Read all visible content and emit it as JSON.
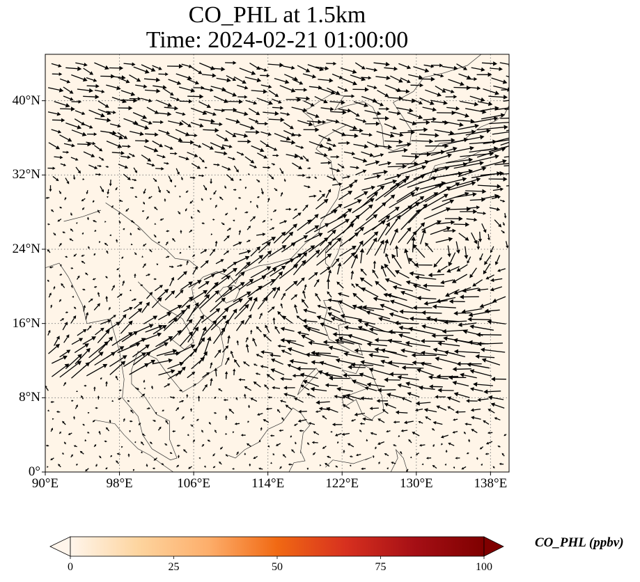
{
  "title": {
    "line1": "CO_PHL at 1.5km",
    "line2": "Time: 2024-02-21 01:00:00"
  },
  "map": {
    "extent": {
      "lon_min": 90,
      "lon_max": 140,
      "lat_min": 0,
      "lat_max": 45
    },
    "background_color": "#fff5e8",
    "gridlines": "dotted"
  },
  "axes": {
    "lat_ticks": [
      {
        "value": 0,
        "label": "0°"
      },
      {
        "value": 8,
        "label": "8°N"
      },
      {
        "value": 16,
        "label": "16°N"
      },
      {
        "value": 24,
        "label": "24°N"
      },
      {
        "value": 32,
        "label": "32°N"
      },
      {
        "value": 40,
        "label": "40°N"
      }
    ],
    "lon_ticks": [
      {
        "value": 90,
        "label": "90°E"
      },
      {
        "value": 98,
        "label": "98°E"
      },
      {
        "value": 106,
        "label": "106°E"
      },
      {
        "value": 114,
        "label": "114°E"
      },
      {
        "value": 122,
        "label": "122°E"
      },
      {
        "value": 130,
        "label": "130°E"
      },
      {
        "value": 138,
        "label": "138°E"
      }
    ]
  },
  "colorbar": {
    "label": "CO_PHL (ppbv)",
    "min": 0,
    "max": 100,
    "ticks": [
      {
        "value": 0,
        "label": "0"
      },
      {
        "value": 25,
        "label": "25"
      },
      {
        "value": 50,
        "label": "50"
      },
      {
        "value": 75,
        "label": "75"
      },
      {
        "value": 100,
        "label": "100"
      }
    ],
    "colormap": [
      "#fff5eb",
      "#fdd49e",
      "#fdae6b",
      "#f16913",
      "#d7301f",
      "#a50f15",
      "#7f0000"
    ],
    "extend": "both"
  },
  "wind_field": {
    "description_colors": {
      "arrow": "#000000"
    }
  }
}
